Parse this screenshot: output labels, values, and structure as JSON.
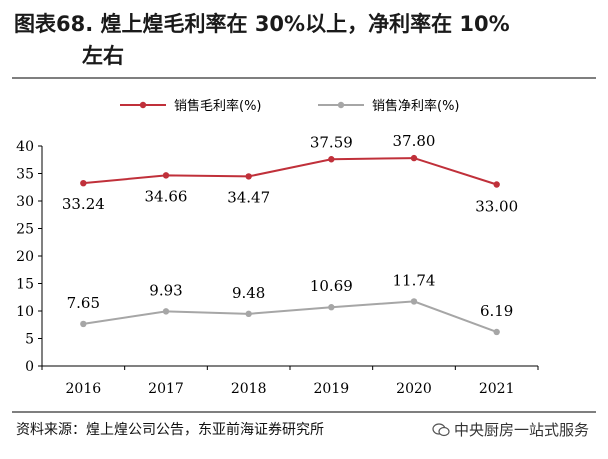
{
  "title": {
    "line1": "图表68. 煌上煌毛利率在 30%以上，净利率在 10%",
    "line2": "左右"
  },
  "source": "资料来源：煌上煌公司公告，东亚前海证券研究所",
  "watermark": {
    "text": "中央厨房一站式服务",
    "icon": "wechat-icon"
  },
  "chart_data": {
    "type": "line",
    "categories": [
      "2016",
      "2017",
      "2018",
      "2019",
      "2020",
      "2021"
    ],
    "series": [
      {
        "name": "销售毛利率(%)",
        "color": "#c0303a",
        "values": [
          33.24,
          34.66,
          34.47,
          37.59,
          37.8,
          33.0
        ],
        "labels": [
          "33.24",
          "34.66",
          "34.47",
          "37.59",
          "37.80",
          "33.00"
        ]
      },
      {
        "name": "销售净利率(%)",
        "color": "#a6a6a6",
        "values": [
          7.65,
          9.93,
          9.48,
          10.69,
          11.74,
          6.19
        ],
        "labels": [
          "7.65",
          "9.93",
          "9.48",
          "10.69",
          "11.74",
          "6.19"
        ]
      }
    ],
    "ylim": [
      0,
      40
    ],
    "yticks": [
      0,
      5,
      10,
      15,
      20,
      25,
      30,
      35,
      40
    ],
    "grid": false,
    "legend": "top-left"
  }
}
